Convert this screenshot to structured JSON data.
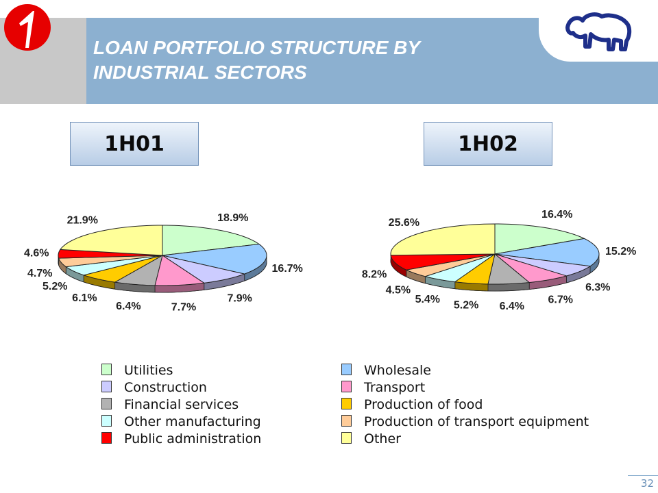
{
  "header": {
    "title_line1": "LOAN PORTFOLIO STRUCTURE BY",
    "title_line2": "INDUSTRIAL SECTORS"
  },
  "logos": {
    "left": "bank-logo-icon",
    "right": "bison-logo-icon"
  },
  "page_number": "32",
  "chart_data": [
    {
      "type": "pie",
      "title": "1H01",
      "labels": [
        "Utilities",
        "Wholesale",
        "Construction",
        "Transport",
        "Financial services",
        "Production of food",
        "Other manufacturing",
        "Production of transport equipment",
        "Public administration",
        "Other"
      ],
      "values": [
        18.9,
        16.7,
        7.9,
        7.7,
        6.4,
        6.1,
        5.2,
        4.7,
        4.6,
        21.9
      ],
      "value_labels": [
        "18.9%",
        "16.7%",
        "7.9%",
        "7.7%",
        "6.4%",
        "6.1%",
        "5.2%",
        "4.7%",
        "4.6%",
        "21.9%"
      ],
      "colors": [
        "#ccffcc",
        "#99ccff",
        "#ccccff",
        "#ff99cc",
        "#b2b2b2",
        "#ffcc00",
        "#ccffff",
        "#ffcc99",
        "#ff0000",
        "#ffff99"
      ]
    },
    {
      "type": "pie",
      "title": "1H02",
      "labels": [
        "Utilities",
        "Wholesale",
        "Construction",
        "Transport",
        "Financial services",
        "Production of food",
        "Other manufacturing",
        "Production of transport equipment",
        "Public administration",
        "Other"
      ],
      "values": [
        16.4,
        15.2,
        6.3,
        6.7,
        6.4,
        5.2,
        5.4,
        4.5,
        8.2,
        25.6
      ],
      "value_labels": [
        "16.4%",
        "15.2%",
        "6.3%",
        "6.7%",
        "6.4%",
        "5.2%",
        "5.4%",
        "4.5%",
        "8.2%",
        "25.6%"
      ],
      "colors": [
        "#ccffcc",
        "#99ccff",
        "#ccccff",
        "#ff99cc",
        "#b2b2b2",
        "#ffcc00",
        "#ccffff",
        "#ffcc99",
        "#ff0000",
        "#ffff99"
      ]
    }
  ],
  "legend": {
    "left": [
      {
        "label": "Utilities",
        "color": "#ccffcc"
      },
      {
        "label": "Construction",
        "color": "#ccccff"
      },
      {
        "label": "Financial services",
        "color": "#b2b2b2"
      },
      {
        "label": "Other manufacturing",
        "color": "#ccffff"
      },
      {
        "label": "Public administration",
        "color": "#ff0000"
      }
    ],
    "right": [
      {
        "label": "Wholesale",
        "color": "#99ccff"
      },
      {
        "label": "Transport",
        "color": "#ff99cc"
      },
      {
        "label": "Production of food",
        "color": "#ffcc00"
      },
      {
        "label": "Production of transport equipment",
        "color": "#ffcc99"
      },
      {
        "label": "Other",
        "color": "#ffff99"
      }
    ]
  }
}
